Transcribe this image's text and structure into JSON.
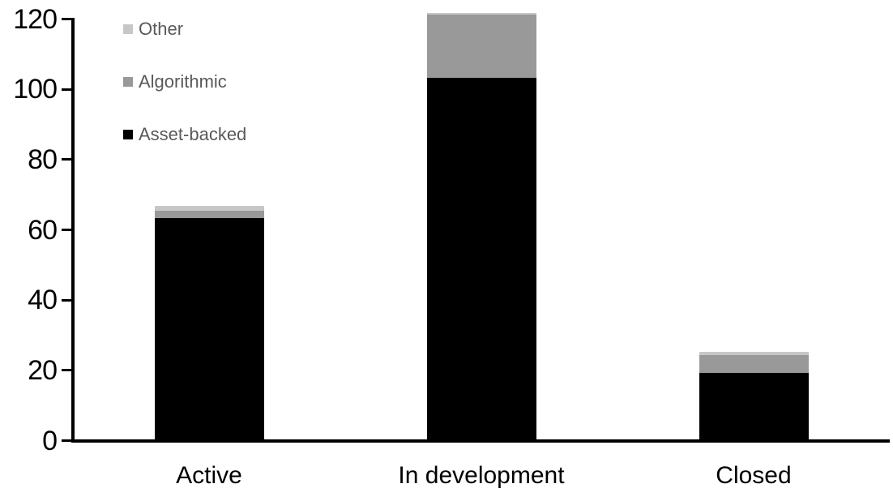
{
  "chart_data": {
    "type": "bar",
    "stacked": true,
    "title": "",
    "xlabel": "",
    "ylabel": "",
    "categories": [
      "Active",
      "In development",
      "Closed"
    ],
    "series": [
      {
        "name": "Asset-backed",
        "color": "#000000",
        "values": [
          63,
          103,
          19
        ]
      },
      {
        "name": "Algorithmic",
        "color": "#999999",
        "values": [
          2,
          18,
          5
        ]
      },
      {
        "name": "Other",
        "color": "#c7c7c7",
        "values": [
          1.5,
          0.5,
          1
        ]
      }
    ],
    "totals": [
      66.5,
      121.5,
      25
    ],
    "ylim": [
      0,
      120
    ],
    "yticks": [
      0,
      20,
      40,
      60,
      80,
      100,
      120
    ],
    "grid": false,
    "legend_position": "top-left",
    "legend_order": [
      "Other",
      "Algorithmic",
      "Asset-backed"
    ]
  },
  "colors": {
    "axis": "#000000",
    "tick_label_text": "#000000",
    "category_label_text": "#000000",
    "legend_text": "#595959",
    "background": "#ffffff"
  }
}
